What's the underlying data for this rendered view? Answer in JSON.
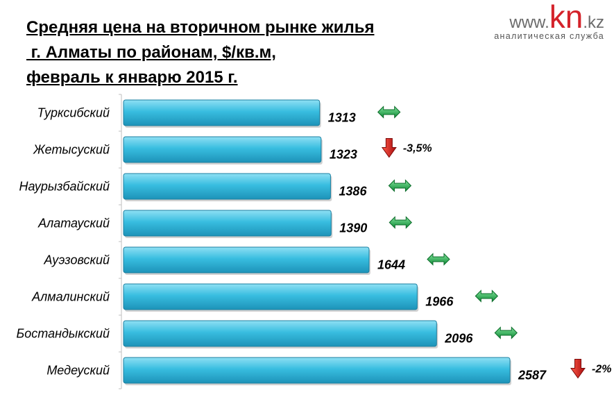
{
  "title": {
    "line1": "Средняя цена на вторичном рынке жилья",
    "line2": " г. Алматы по районам, $/кв.м,",
    "line3": "февраль к январю 2015 г."
  },
  "logo": {
    "www": "www.",
    "kn": "kn",
    "kz": ".kz",
    "subtitle": "аналитическая служба"
  },
  "colors": {
    "bar_fill": "#2fb3d6",
    "bar_highlight": "#8fe0f4",
    "bar_edge": "#1b7fa0",
    "arrow_green": "#1ea84a",
    "arrow_red": "#d01818"
  },
  "chart_data": {
    "type": "bar",
    "orientation": "horizontal",
    "categories": [
      "Турксибский",
      "Жетысуский",
      "Наурызбайский",
      "Алатауский",
      "Ауэзовский",
      "Алмалинский",
      "Бостандыкский",
      "Медеуский"
    ],
    "values": [
      1313,
      1323,
      1386,
      1390,
      1644,
      1966,
      2096,
      2587
    ],
    "value_labels": [
      "1313",
      "1323",
      "1386",
      "1390",
      "1644",
      "1966",
      "2096",
      "2587"
    ],
    "change_direction": [
      "flat",
      "down",
      "flat",
      "flat",
      "flat",
      "flat",
      "flat",
      "down"
    ],
    "change_labels": [
      "",
      "-3,5%",
      "",
      "",
      "",
      "",
      "",
      "-2%"
    ],
    "icons": [
      "double-arrow-icon",
      "down-arrow-icon",
      "double-arrow-icon",
      "double-arrow-icon",
      "double-arrow-icon",
      "double-arrow-icon",
      "double-arrow-icon",
      "down-arrow-icon"
    ],
    "xlim": [
      0,
      2587
    ],
    "grid": false,
    "legend": "none"
  }
}
